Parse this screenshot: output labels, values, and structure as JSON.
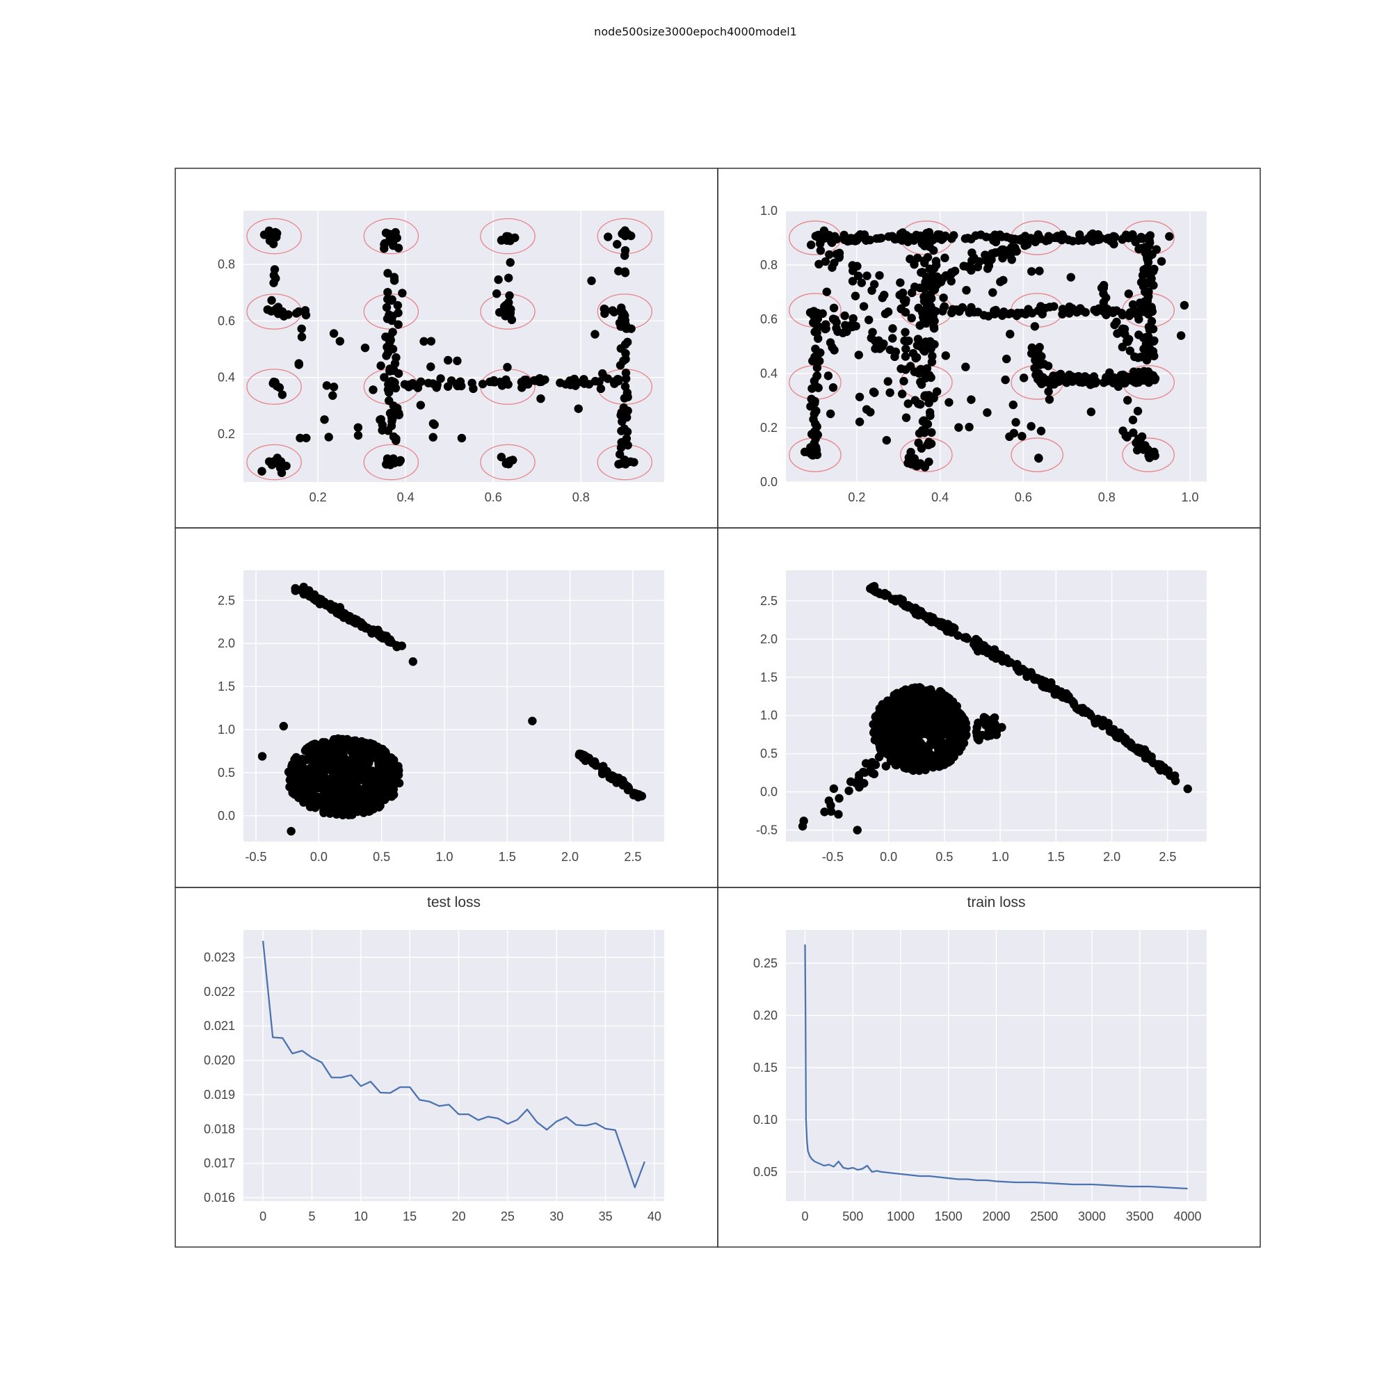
{
  "figure": {
    "title": "node500size3000epoch4000model1"
  },
  "colors": {
    "background": "#eaeaf2",
    "grid": "#ffffff",
    "marker": "#000000",
    "circle": "#e8838a",
    "loss_line": "#4c72b0",
    "panel_border": "#333333"
  },
  "chart_data": [
    {
      "type": "scatter",
      "title": "",
      "xlabel": "",
      "ylabel": "",
      "xlim": [
        0.03,
        0.99
      ],
      "ylim": [
        0.03,
        0.99
      ],
      "xticks": [
        "0.2",
        "0.4",
        "0.6",
        "0.8"
      ],
      "yticks": [
        "0.2",
        "0.4",
        "0.6",
        "0.8"
      ],
      "grid": true,
      "reference_circles": {
        "centers_x": [
          0.1,
          0.367,
          0.633,
          0.9
        ],
        "centers_y": [
          0.1,
          0.367,
          0.633,
          0.9
        ],
        "radius_x": 0.062,
        "radius_y": 0.062,
        "color": "#e8838a"
      },
      "point_groups": [
        {
          "kind": "cluster",
          "cx": 0.1,
          "cy": 0.9,
          "spread": 0.012,
          "count": 8
        },
        {
          "kind": "cluster",
          "cx": 0.1,
          "cy": 0.63,
          "spread": 0.012,
          "count": 8
        },
        {
          "kind": "cluster",
          "cx": 0.1,
          "cy": 0.37,
          "spread": 0.012,
          "count": 6
        },
        {
          "kind": "cluster",
          "cx": 0.1,
          "cy": 0.1,
          "spread": 0.014,
          "count": 12
        },
        {
          "kind": "cluster",
          "cx": 0.367,
          "cy": 0.9,
          "spread": 0.012,
          "count": 10
        },
        {
          "kind": "cluster",
          "cx": 0.367,
          "cy": 0.1,
          "spread": 0.01,
          "count": 10
        },
        {
          "kind": "cluster",
          "cx": 0.633,
          "cy": 0.89,
          "spread": 0.012,
          "count": 8
        },
        {
          "kind": "cluster",
          "cx": 0.633,
          "cy": 0.64,
          "spread": 0.012,
          "count": 10
        },
        {
          "kind": "cluster",
          "cx": 0.633,
          "cy": 0.1,
          "spread": 0.008,
          "count": 6
        },
        {
          "kind": "cluster",
          "cx": 0.9,
          "cy": 0.91,
          "spread": 0.015,
          "count": 10
        },
        {
          "kind": "cluster",
          "cx": 0.9,
          "cy": 0.1,
          "spread": 0.01,
          "count": 8
        },
        {
          "kind": "segment",
          "x0": 0.367,
          "y0": 0.12,
          "x1": 0.367,
          "y1": 0.9,
          "count": 60,
          "jitter": 0.01
        },
        {
          "kind": "segment",
          "x0": 0.9,
          "y0": 0.1,
          "x1": 0.9,
          "y1": 0.65,
          "count": 40,
          "jitter": 0.008
        },
        {
          "kind": "segment",
          "x0": 0.1,
          "y0": 0.63,
          "x1": 0.1,
          "y1": 0.78,
          "count": 5,
          "jitter": 0.006
        },
        {
          "kind": "segment",
          "x0": 0.633,
          "y0": 0.38,
          "x1": 0.633,
          "y1": 0.85,
          "count": 8,
          "jitter": 0.008
        },
        {
          "kind": "segment",
          "x0": 0.36,
          "y0": 0.37,
          "x1": 0.9,
          "y1": 0.39,
          "count": 70,
          "jitter": 0.008
        },
        {
          "kind": "segment",
          "x0": 0.1,
          "y0": 0.63,
          "x1": 0.18,
          "y1": 0.63,
          "count": 10,
          "jitter": 0.006
        },
        {
          "kind": "segment",
          "x0": 0.86,
          "y0": 0.63,
          "x1": 0.9,
          "y1": 0.63,
          "count": 8,
          "jitter": 0.008
        },
        {
          "kind": "segment",
          "x0": 0.9,
          "y0": 0.77,
          "x1": 0.9,
          "y1": 0.88,
          "count": 6,
          "jitter": 0.008
        },
        {
          "kind": "scatter_box",
          "x0": 0.15,
          "x1": 0.55,
          "y0": 0.17,
          "y1": 0.6,
          "count": 35
        },
        {
          "kind": "scatter_box",
          "x0": 0.6,
          "x1": 0.85,
          "y0": 0.2,
          "y1": 0.85,
          "count": 10
        }
      ]
    },
    {
      "type": "scatter",
      "title": "",
      "xlabel": "",
      "ylabel": "",
      "xlim": [
        0.03,
        1.04
      ],
      "ylim": [
        0.0,
        1.0
      ],
      "xticks": [
        "0.2",
        "0.4",
        "0.6",
        "0.8",
        "1.0"
      ],
      "yticks": [
        "0.0",
        "0.2",
        "0.4",
        "0.6",
        "0.8",
        "1.0"
      ],
      "grid": true,
      "reference_circles": {
        "centers_x": [
          0.1,
          0.367,
          0.633,
          0.9
        ],
        "centers_y": [
          0.1,
          0.367,
          0.633,
          0.9
        ],
        "radius_x": 0.062,
        "radius_y": 0.062,
        "color": "#e8838a"
      },
      "point_groups": [
        {
          "kind": "segment",
          "x0": 0.1,
          "y0": 0.9,
          "x1": 0.9,
          "y1": 0.9,
          "count": 140,
          "jitter": 0.008
        },
        {
          "kind": "segment",
          "x0": 0.9,
          "y0": 0.9,
          "x1": 0.9,
          "y1": 0.38,
          "count": 90,
          "jitter": 0.01
        },
        {
          "kind": "segment",
          "x0": 0.367,
          "y0": 0.07,
          "x1": 0.367,
          "y1": 0.92,
          "count": 110,
          "jitter": 0.015
        },
        {
          "kind": "segment",
          "x0": 0.1,
          "y0": 0.08,
          "x1": 0.1,
          "y1": 0.65,
          "count": 45,
          "jitter": 0.006
        },
        {
          "kind": "segment",
          "x0": 0.1,
          "y0": 0.62,
          "x1": 0.367,
          "y1": 0.42,
          "count": 40,
          "jitter": 0.02
        },
        {
          "kind": "segment",
          "x0": 0.367,
          "y0": 0.72,
          "x1": 0.633,
          "y1": 0.9,
          "count": 45,
          "jitter": 0.01
        },
        {
          "kind": "segment",
          "x0": 0.1,
          "y0": 0.9,
          "x1": 0.367,
          "y1": 0.58,
          "count": 35,
          "jitter": 0.03
        },
        {
          "kind": "segment",
          "x0": 0.367,
          "y0": 0.63,
          "x1": 0.9,
          "y1": 0.63,
          "count": 70,
          "jitter": 0.01
        },
        {
          "kind": "segment",
          "x0": 0.633,
          "y0": 0.38,
          "x1": 0.9,
          "y1": 0.38,
          "count": 90,
          "jitter": 0.01
        },
        {
          "kind": "segment",
          "x0": 0.633,
          "y0": 0.38,
          "x1": 0.633,
          "y1": 0.5,
          "count": 15,
          "jitter": 0.006
        },
        {
          "kind": "segment",
          "x0": 0.78,
          "y0": 0.72,
          "x1": 0.88,
          "y1": 0.42,
          "count": 25,
          "jitter": 0.01
        },
        {
          "kind": "segment",
          "x0": 0.82,
          "y0": 0.2,
          "x1": 0.92,
          "y1": 0.09,
          "count": 20,
          "jitter": 0.01
        },
        {
          "kind": "cluster",
          "cx": 0.34,
          "cy": 0.07,
          "spread": 0.012,
          "count": 15
        },
        {
          "kind": "cluster",
          "cx": 0.1,
          "cy": 0.11,
          "spread": 0.01,
          "count": 10
        },
        {
          "kind": "cluster",
          "cx": 0.633,
          "cy": 0.09,
          "spread": 0.003,
          "count": 2
        },
        {
          "kind": "scatter_box",
          "x0": 0.12,
          "x1": 0.7,
          "y0": 0.15,
          "y1": 0.85,
          "count": 90
        },
        {
          "kind": "scatter_box",
          "x0": 0.65,
          "x1": 1.0,
          "y0": 0.2,
          "y1": 0.95,
          "count": 20
        }
      ]
    },
    {
      "type": "scatter",
      "title": "",
      "xlabel": "",
      "ylabel": "",
      "xlim": [
        -0.6,
        2.75
      ],
      "ylim": [
        -0.3,
        2.85
      ],
      "xticks": [
        "-0.5",
        "0.0",
        "0.5",
        "1.0",
        "1.5",
        "2.0",
        "2.5"
      ],
      "yticks": [
        "0.0",
        "0.5",
        "1.0",
        "1.5",
        "2.0",
        "2.5"
      ],
      "grid": true,
      "point_groups": [
        {
          "kind": "blob",
          "cx": 0.2,
          "cy": 0.45,
          "rx": 0.45,
          "ry": 0.45,
          "count": 650
        },
        {
          "kind": "segment",
          "x0": -0.17,
          "y0": 2.65,
          "x1": 0.65,
          "y1": 1.96,
          "count": 120,
          "jitter": 0.015
        },
        {
          "kind": "segment",
          "x0": 2.05,
          "y0": 0.75,
          "x1": 2.58,
          "y1": 0.2,
          "count": 60,
          "jitter": 0.015
        },
        {
          "kind": "points",
          "x": [
            0.75,
            1.7,
            -0.45,
            -0.22,
            -0.28
          ],
          "y": [
            1.79,
            1.1,
            0.69,
            -0.18,
            1.04
          ]
        }
      ]
    },
    {
      "type": "scatter",
      "title": "",
      "xlabel": "",
      "ylabel": "",
      "xlim": [
        -0.92,
        2.85
      ],
      "ylim": [
        -0.65,
        2.9
      ],
      "xticks": [
        "-0.5",
        "0.0",
        "0.5",
        "1.0",
        "1.5",
        "2.0",
        "2.5"
      ],
      "yticks": [
        "-0.5",
        "0.0",
        "0.5",
        "1.0",
        "1.5",
        "2.0",
        "2.5"
      ],
      "grid": true,
      "point_groups": [
        {
          "kind": "blob",
          "cx": 0.28,
          "cy": 0.82,
          "rx": 0.42,
          "ry": 0.55,
          "count": 700
        },
        {
          "kind": "curve",
          "x0": -0.2,
          "y0": 2.7,
          "x1": 2.6,
          "y1": 0.15,
          "bulge": 0.12,
          "count": 260,
          "jitter": 0.02
        },
        {
          "kind": "segment",
          "x0": -0.55,
          "y0": -0.25,
          "x1": 0.0,
          "y1": 0.55,
          "count": 30,
          "jitter": 0.04
        },
        {
          "kind": "blob",
          "cx": 0.9,
          "cy": 0.8,
          "rx": 0.12,
          "ry": 0.2,
          "count": 30
        },
        {
          "kind": "points",
          "x": [
            -0.77,
            -0.76,
            -0.28,
            2.68
          ],
          "y": [
            -0.45,
            -0.38,
            -0.5,
            0.04
          ]
        }
      ]
    },
    {
      "type": "line",
      "title": "test loss",
      "xlabel": "",
      "ylabel": "",
      "xlim": [
        -2,
        41
      ],
      "ylim": [
        0.0159,
        0.0238
      ],
      "xticks": [
        "0",
        "5",
        "10",
        "15",
        "20",
        "25",
        "30",
        "35",
        "40"
      ],
      "yticks": [
        "0.016",
        "0.017",
        "0.018",
        "0.019",
        "0.020",
        "0.021",
        "0.022",
        "0.023"
      ],
      "grid": true,
      "x": [
        0,
        1,
        2,
        3,
        4,
        5,
        6,
        7,
        8,
        9,
        10,
        11,
        12,
        13,
        14,
        15,
        16,
        17,
        18,
        19,
        20,
        21,
        22,
        23,
        24,
        25,
        26,
        27,
        28,
        29,
        30,
        31,
        32,
        33,
        34,
        35,
        36,
        37,
        38,
        39
      ],
      "values": [
        0.02348,
        0.02067,
        0.02065,
        0.0202,
        0.02028,
        0.02008,
        0.01994,
        0.0195,
        0.0195,
        0.01957,
        0.01925,
        0.01938,
        0.01906,
        0.01905,
        0.01922,
        0.01922,
        0.01885,
        0.0188,
        0.01867,
        0.01871,
        0.01843,
        0.01843,
        0.01826,
        0.01836,
        0.01831,
        0.01815,
        0.01827,
        0.01857,
        0.0182,
        0.01798,
        0.01822,
        0.01835,
        0.01812,
        0.0181,
        0.01817,
        0.01801,
        0.01797,
        0.01715,
        0.0163,
        0.01705
      ]
    },
    {
      "type": "line",
      "title": "train loss",
      "xlabel": "",
      "ylabel": "",
      "xlim": [
        -200,
        4200
      ],
      "ylim": [
        0.022,
        0.282
      ],
      "xticks": [
        "0",
        "500",
        "1000",
        "1500",
        "2000",
        "2500",
        "3000",
        "3500",
        "4000"
      ],
      "yticks": [
        "0.05",
        "0.10",
        "0.15",
        "0.20",
        "0.25"
      ],
      "grid": true,
      "x": [
        0,
        5,
        10,
        20,
        30,
        50,
        75,
        100,
        150,
        200,
        250,
        300,
        350,
        400,
        450,
        500,
        550,
        600,
        650,
        700,
        750,
        800,
        900,
        1000,
        1100,
        1200,
        1300,
        1400,
        1500,
        1600,
        1700,
        1800,
        1900,
        2000,
        2200,
        2400,
        2600,
        2800,
        3000,
        3200,
        3400,
        3600,
        3800,
        4000
      ],
      "values": [
        0.268,
        0.2,
        0.1,
        0.08,
        0.07,
        0.065,
        0.062,
        0.06,
        0.058,
        0.056,
        0.057,
        0.055,
        0.06,
        0.054,
        0.053,
        0.054,
        0.052,
        0.053,
        0.056,
        0.05,
        0.051,
        0.05,
        0.049,
        0.048,
        0.047,
        0.046,
        0.046,
        0.045,
        0.044,
        0.043,
        0.043,
        0.042,
        0.042,
        0.041,
        0.04,
        0.04,
        0.039,
        0.038,
        0.038,
        0.037,
        0.036,
        0.036,
        0.035,
        0.034
      ]
    }
  ]
}
